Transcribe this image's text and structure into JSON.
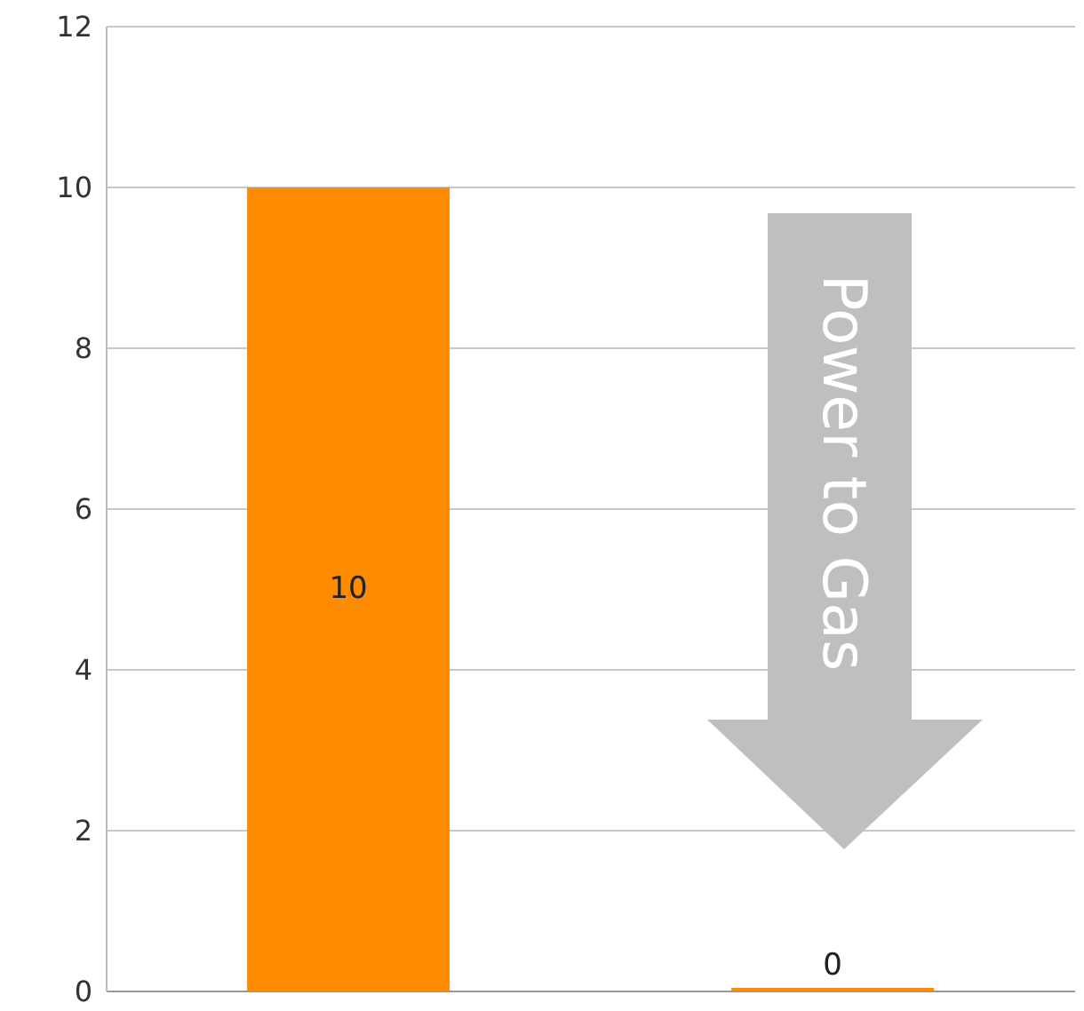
{
  "chart_data": {
    "type": "bar",
    "categories": [
      null,
      null
    ],
    "values": [
      10,
      0
    ],
    "color": "#ff8c00",
    "ylim": [
      0,
      12
    ],
    "yticks": [
      0,
      2,
      4,
      6,
      8,
      10,
      12
    ],
    "grid": "y",
    "data_labels": true,
    "annotations": [
      "Power to Gas"
    ]
  }
}
